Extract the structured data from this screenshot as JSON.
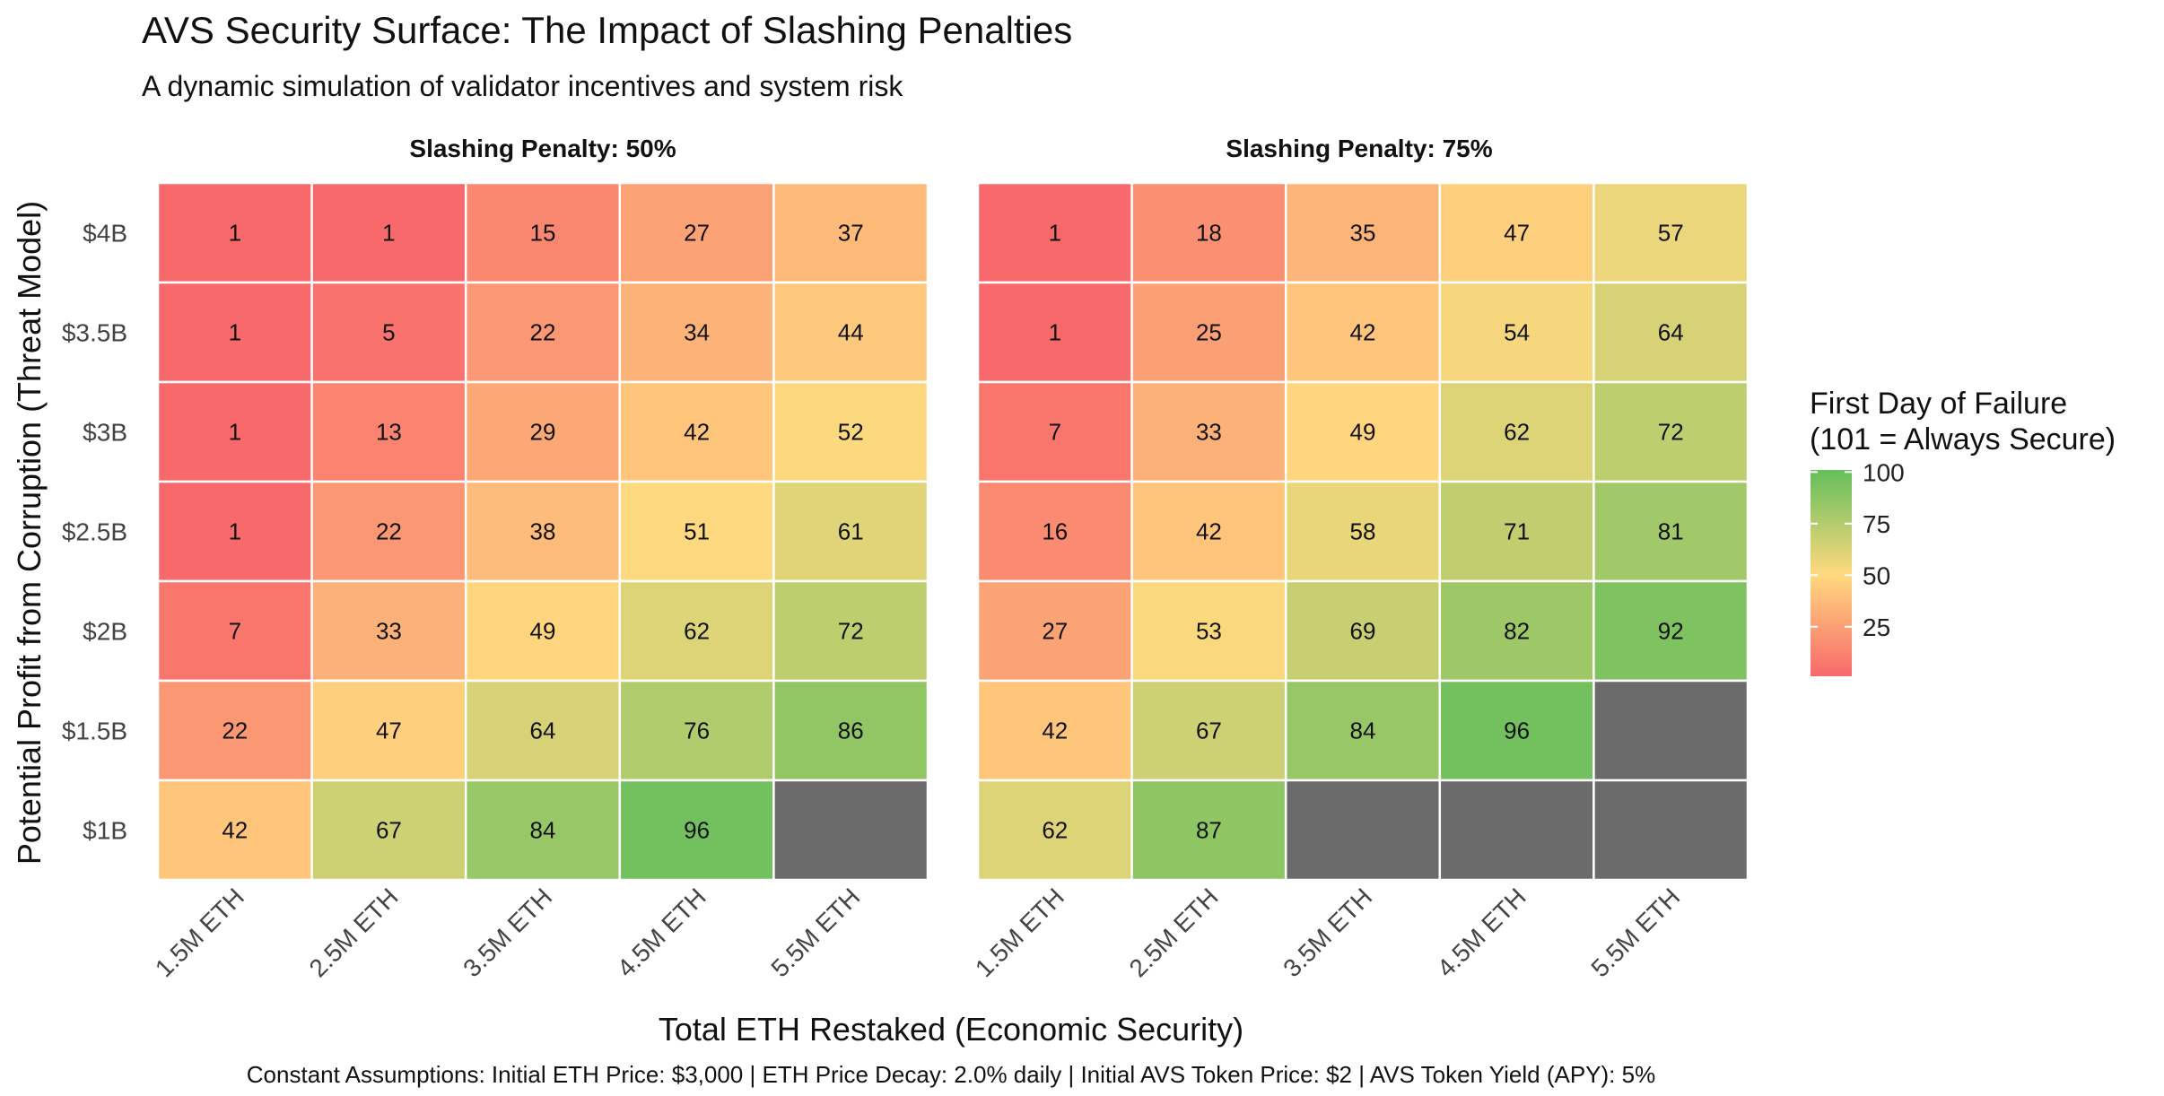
{
  "chart_data": {
    "type": "heatmap",
    "title": "AVS Security Surface: The Impact of Slashing Penalties",
    "subtitle": "A dynamic simulation of validator incentives and system risk",
    "xlabel": "Total ETH Restaked (Economic Security)",
    "ylabel": "Potential Profit from Corruption (Threat Model)",
    "caption": "Constant Assumptions: Initial ETH Price: $3,000 | ETH Price Decay: 2.0% daily | Initial AVS Token Price: $2 | AVS Token Yield (APY): 5%",
    "x_categories": [
      "1.5M ETH",
      "2.5M ETH",
      "3.5M ETH",
      "4.5M ETH",
      "5.5M ETH"
    ],
    "y_categories": [
      "$4B",
      "$3.5B",
      "$3B",
      "$2.5B",
      "$2B",
      "$1.5B",
      "$1B"
    ],
    "legend": {
      "title_line1": "First Day of Failure",
      "title_line2": "(101 = Always Secure)",
      "ticks": [
        100,
        75,
        50,
        25
      ],
      "range": [
        1,
        101
      ],
      "position": "right",
      "colors": {
        "low": "#F8696B",
        "mid": "#FFD97F",
        "high": "#63BE5A",
        "na": "#6b6b6b"
      }
    },
    "panels": [
      {
        "label": "Slashing Penalty: 50%",
        "values": [
          [
            1,
            1,
            15,
            27,
            37
          ],
          [
            1,
            5,
            22,
            34,
            44
          ],
          [
            1,
            13,
            29,
            42,
            52
          ],
          [
            1,
            22,
            38,
            51,
            61
          ],
          [
            7,
            33,
            49,
            62,
            72
          ],
          [
            22,
            47,
            64,
            76,
            86
          ],
          [
            42,
            67,
            84,
            96,
            null
          ]
        ]
      },
      {
        "label": "Slashing Penalty: 75%",
        "values": [
          [
            1,
            18,
            35,
            47,
            57
          ],
          [
            1,
            25,
            42,
            54,
            64
          ],
          [
            7,
            33,
            49,
            62,
            72
          ],
          [
            16,
            42,
            58,
            71,
            81
          ],
          [
            27,
            53,
            69,
            82,
            92
          ],
          [
            42,
            67,
            84,
            96,
            null
          ],
          [
            62,
            87,
            null,
            null,
            null
          ]
        ]
      }
    ]
  }
}
